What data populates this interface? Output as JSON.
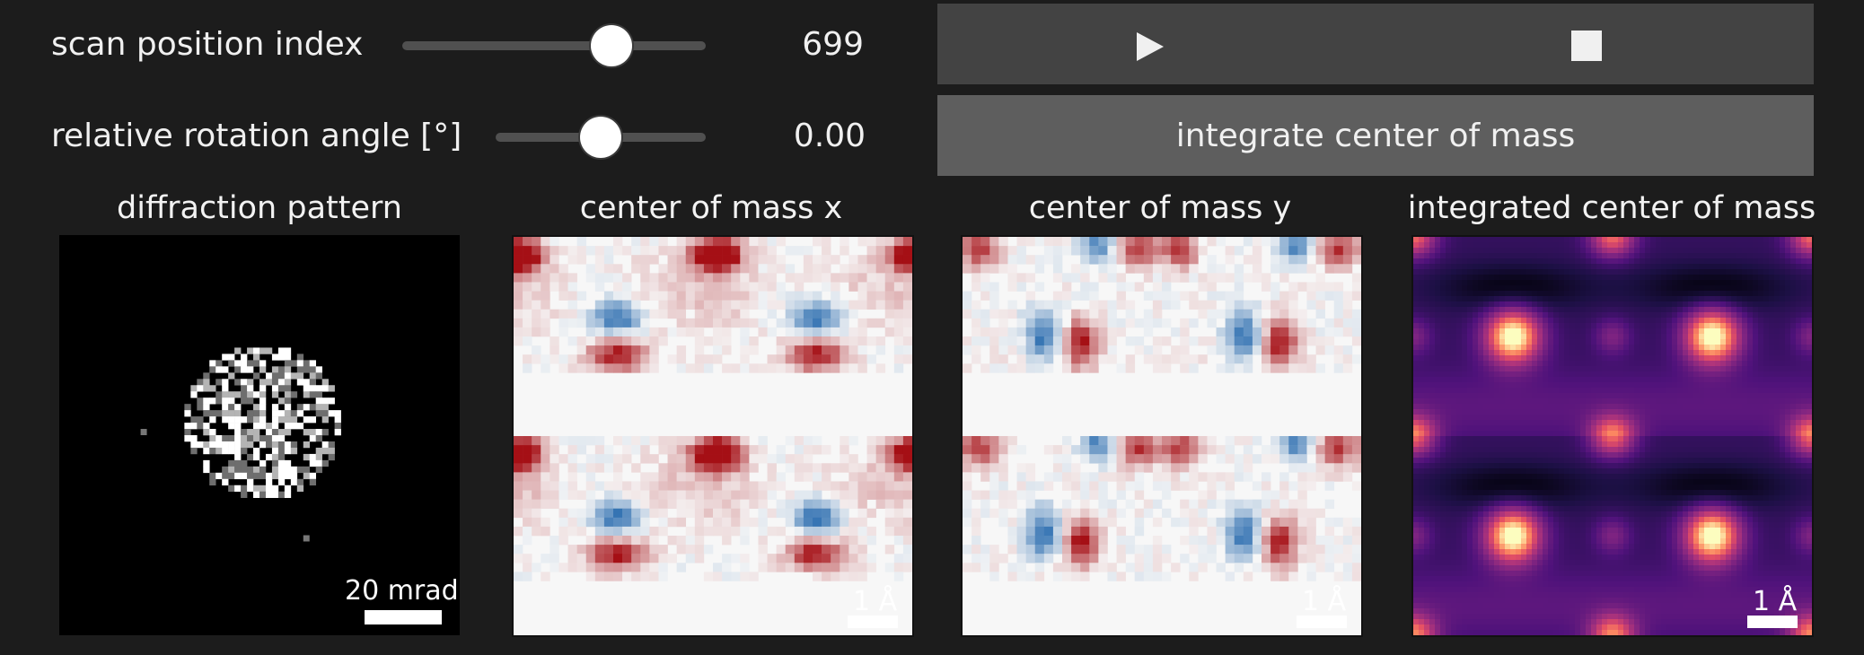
{
  "controls": {
    "scan_position": {
      "label": "scan position index",
      "value": "699",
      "fraction": 0.69
    },
    "rotation": {
      "label": "relative rotation angle [°]",
      "value": "0.00",
      "fraction": 0.5
    },
    "play_icon": "play-icon",
    "stop_icon": "stop-icon",
    "integrate_label": "integrate center of mass"
  },
  "panels": {
    "diffraction": {
      "title": "diffraction pattern",
      "scalebar_label": "20 mrad",
      "colormap": "gray"
    },
    "com_x": {
      "title": "center of mass x",
      "scalebar_label": "1 Å",
      "colormap": "RdBu"
    },
    "com_y": {
      "title": "center of mass y",
      "scalebar_label": "1 Å",
      "colormap": "RdBu"
    },
    "icom": {
      "title": "integrated center of mass",
      "scalebar_label": "1 Å",
      "colormap": "magma"
    }
  },
  "colors": {
    "background": "#1c1c1c",
    "button": "#434343",
    "button_integrate": "#5e5e5e",
    "red": "#a50f15",
    "blue": "#2166ac"
  }
}
